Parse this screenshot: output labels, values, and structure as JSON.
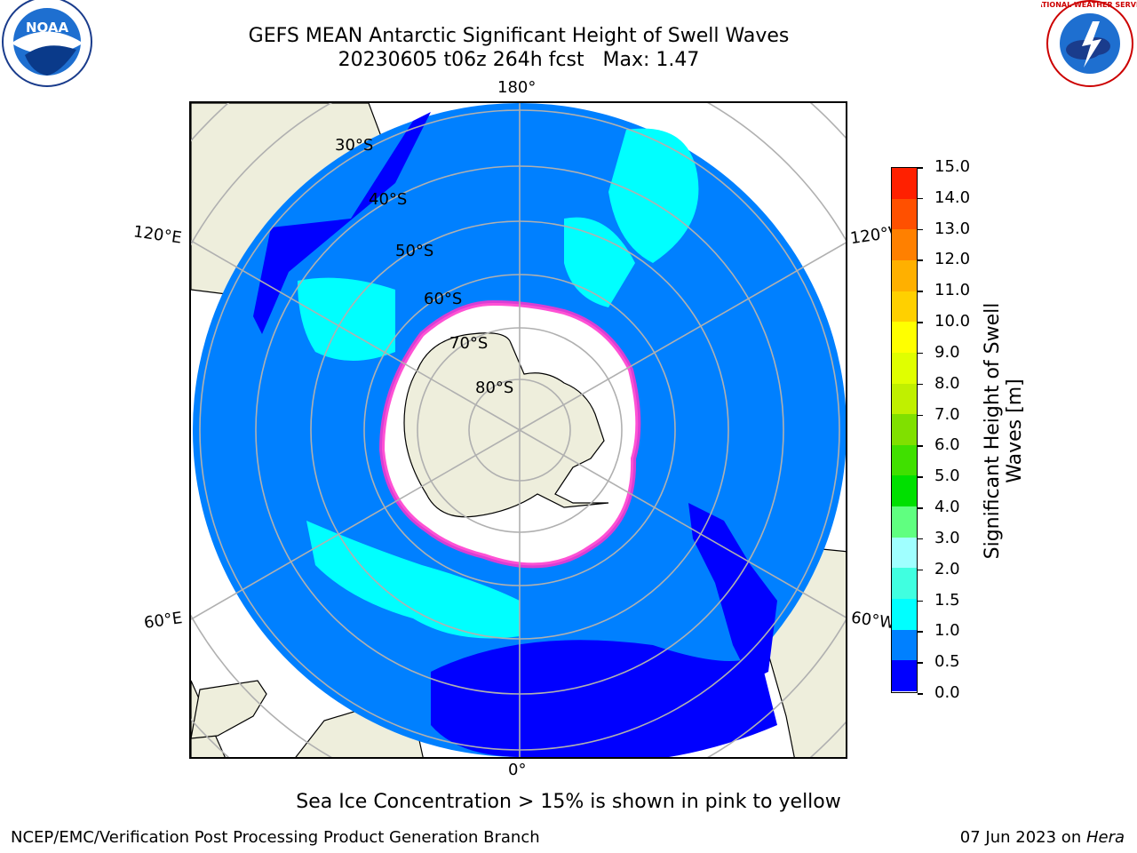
{
  "header": {
    "title_line1": "GEFS MEAN Antarctic Significant Height of Swell Waves",
    "title_line2": "20230605 t06z 264h fcst   Max: 1.47"
  },
  "logos": {
    "left": {
      "icon": "noaa-logo",
      "text": "NOAA"
    },
    "right": {
      "icon": "nws-logo",
      "text": "NATIONAL WEATHER SERVICE"
    }
  },
  "map": {
    "longitude_labels": {
      "top": "180°",
      "bottom": "0°",
      "upper_left": "120°E",
      "upper_right": "120°W",
      "lower_left": "60°E",
      "lower_right": "60°W"
    },
    "latitude_labels": [
      "30°S",
      "40°S",
      "50°S",
      "60°S",
      "70°S",
      "80°S"
    ],
    "colors": {
      "land": "#eeeedc",
      "ocean_main": "#0080ff",
      "ocean_low": "#0000ff",
      "ocean_mid": "#00ffff",
      "ice": "#ffffff",
      "ice_edge": "#ff33cc",
      "grid": "#b0b0b0"
    }
  },
  "colorbar": {
    "label_line1": "Significant Height of Swell",
    "label_line2": "Waves [m]",
    "ticks": [
      "0.0",
      "0.5",
      "1.0",
      "1.5",
      "2.0",
      "3.0",
      "4.0",
      "5.0",
      "6.0",
      "7.0",
      "8.0",
      "9.0",
      "10.0",
      "11.0",
      "12.0",
      "13.0",
      "14.0",
      "15.0"
    ],
    "colors": [
      "#0000ff",
      "#0080ff",
      "#00ffff",
      "#40ffe0",
      "#a0ffff",
      "#60ff80",
      "#00e000",
      "#40e000",
      "#80e000",
      "#c0f000",
      "#e0ff00",
      "#ffff00",
      "#ffd000",
      "#ffb000",
      "#ff8000",
      "#ff5000",
      "#ff2000"
    ]
  },
  "footer": {
    "caption": "Sea Ice Concentration > 15% is shown in pink to yellow",
    "left": "NCEP/EMC/Verification Post Processing Product Generation Branch",
    "right_date": "07 Jun 2023 on ",
    "right_machine": "Hera"
  }
}
